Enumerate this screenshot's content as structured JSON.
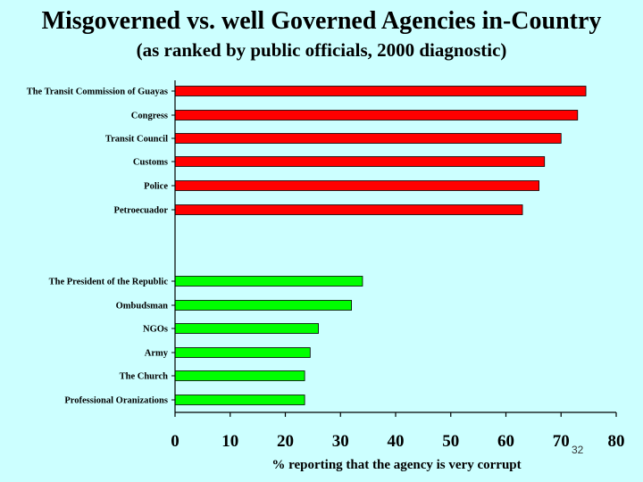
{
  "slide": {
    "title": "Misgoverned vs. well Governed Agencies in-Country",
    "subtitle": "(as ranked by public officials, 2000 diagnostic)",
    "page_number": "32"
  },
  "colors": {
    "background": "#ccffff",
    "misgoverned": "#ff0000",
    "well_governed": "#00ff00"
  },
  "chart_data": {
    "type": "bar",
    "orientation": "horizontal",
    "title": "Misgoverned vs. well Governed Agencies in-Country",
    "subtitle": "(as ranked by public officials, 2000 diagnostic)",
    "xlabel": "% reporting that the agency is very corrupt",
    "ylabel": "",
    "xlim": [
      0,
      80
    ],
    "xticks": [
      "0",
      "10",
      "20",
      "30",
      "40",
      "50",
      "60",
      "70",
      "80"
    ],
    "grid": false,
    "legend": "none",
    "groups": [
      {
        "color": "#ff0000",
        "categories": [
          "The Transit Commission of Guayas",
          "Congress",
          "Transit Council",
          "Customs",
          "Police",
          "Petroecuador"
        ],
        "values": [
          74.5,
          73,
          70,
          67,
          66,
          63
        ]
      },
      {
        "color": "#00ff00",
        "categories": [
          "The President of the Republic",
          "Ombudsman",
          "NGOs",
          "Army",
          "The Church",
          "Professional Oranizations"
        ],
        "values": [
          34,
          32,
          26,
          24.5,
          23.5,
          23.5
        ]
      }
    ]
  }
}
